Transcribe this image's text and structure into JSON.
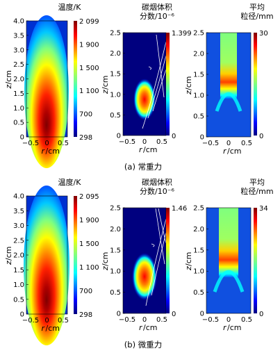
{
  "units": {
    "r": "/cm",
    "z": "/cm"
  },
  "axis_names": {
    "r": "r",
    "z": "z"
  },
  "captions": {
    "a": "(a) 常重力",
    "b": "(b) 微重力"
  },
  "panels": [
    {
      "name": "temperature-normal",
      "colorbar_title": [
        "温度/K"
      ],
      "colorbar_ticks": [
        "2 099",
        "1 900",
        "1 500",
        "1 100",
        "700",
        "298"
      ],
      "x_ticks": [
        "−0.5",
        "0",
        "0.5"
      ],
      "y_ticks": [
        "4.0",
        "3.5",
        "3.0",
        "2.5",
        "2.0",
        "1.5",
        "1.0",
        "0.5",
        "0"
      ],
      "x_label": "r",
      "y_label": "z"
    },
    {
      "name": "soot-normal",
      "colorbar_title": [
        "碳烟体积",
        "分数/10⁻⁶"
      ],
      "colorbar_ticks": [
        "1.399",
        "0"
      ],
      "x_ticks": [
        "−0.5",
        "0",
        "0.5"
      ],
      "y_ticks": [
        "2.5",
        "2.0",
        "1.5",
        "1.0",
        "0.5",
        "0"
      ],
      "x_label": "r",
      "y_label": "z"
    },
    {
      "name": "diameter-normal",
      "colorbar_title": [
        "平均",
        "粒径/mm"
      ],
      "colorbar_ticks": [
        "30",
        "0"
      ],
      "x_ticks": [
        "−0.5",
        "0",
        "0.5"
      ],
      "y_ticks": [
        "2.5",
        "2.0",
        "1.5",
        "1.0",
        "0.5",
        "0"
      ],
      "x_label": "r",
      "y_label": "z"
    },
    {
      "name": "temperature-micro",
      "colorbar_title": [
        "温度/K"
      ],
      "colorbar_ticks": [
        "2 095",
        "1 900",
        "1 500",
        "1 100",
        "700",
        "298"
      ],
      "x_ticks": [
        "−0.5",
        "0",
        "0.5"
      ],
      "y_ticks": [
        "4.0",
        "3.5",
        "3.0",
        "2.5",
        "2.0",
        "1.5",
        "1.0",
        "0.5",
        "0"
      ],
      "x_label": "r",
      "y_label": "z"
    },
    {
      "name": "soot-micro",
      "colorbar_title": [
        "碳烟体积",
        "分数/10⁻⁶"
      ],
      "colorbar_ticks": [
        "1.46",
        "0"
      ],
      "x_ticks": [
        "−0.5",
        "0",
        "0.5"
      ],
      "y_ticks": [
        "2.5",
        "2.0",
        "1.5",
        "1.0",
        "0.5",
        "0"
      ],
      "x_label": "r",
      "y_label": "z"
    },
    {
      "name": "diameter-micro",
      "colorbar_title": [
        "平均",
        "粒径/mm"
      ],
      "colorbar_ticks": [
        "34",
        "0"
      ],
      "x_ticks": [
        "−0.5",
        "0",
        "0.5"
      ],
      "y_ticks": [
        "2.5",
        "2.0",
        "1.5",
        "1.0",
        "0.5",
        "0"
      ],
      "x_label": "r",
      "y_label": "z"
    }
  ],
  "colors": {
    "jet": [
      "#00007f",
      "#0000ff",
      "#007fff",
      "#00ffff",
      "#7fff7f",
      "#ffff00",
      "#ff7f00",
      "#ff0000",
      "#7f0000"
    ],
    "streamline": "#ffffff"
  }
}
